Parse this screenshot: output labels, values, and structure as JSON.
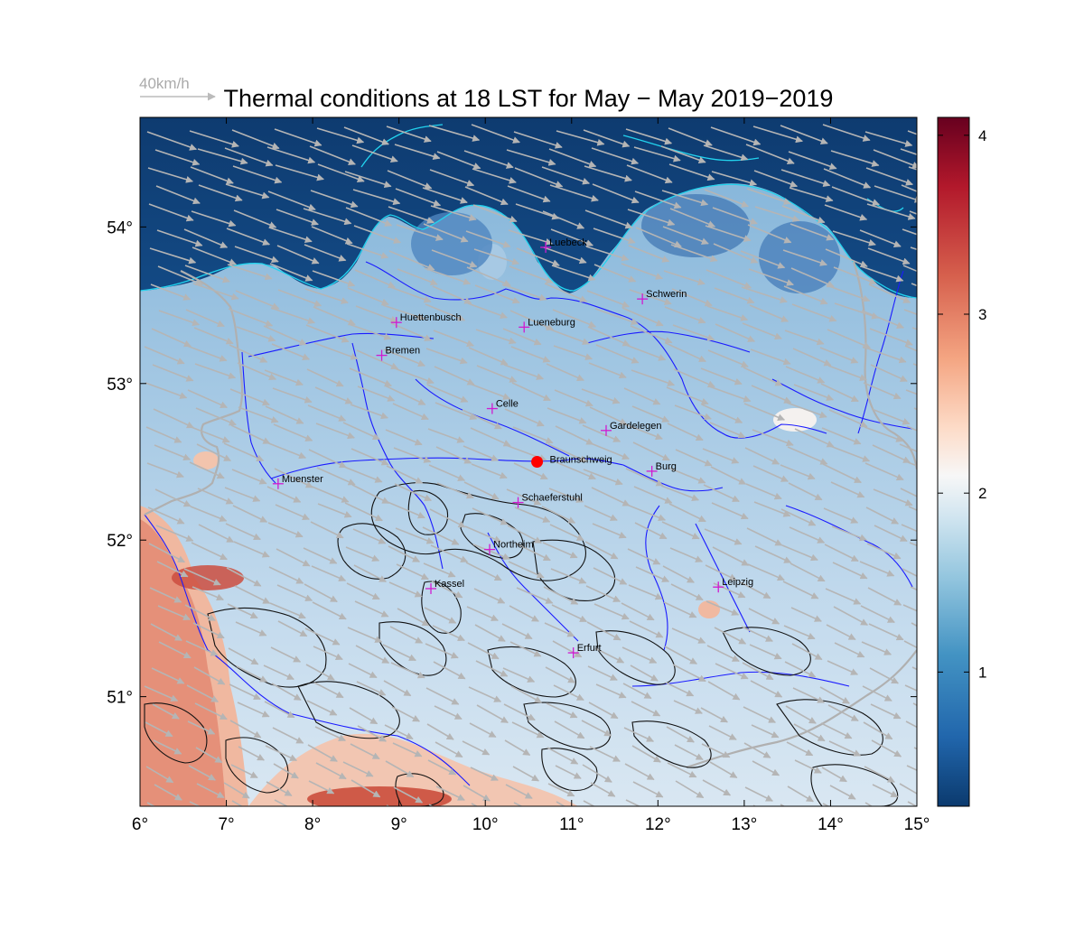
{
  "title": "Thermal conditions at 18 LST for May − May  2019−2019",
  "wind_scale": {
    "label": "40km/h"
  },
  "axes": {
    "x_ticks": [
      "6°",
      "7°",
      "8°",
      "9°",
      "10°",
      "11°",
      "12°",
      "13°",
      "14°",
      "15°"
    ],
    "x_values": [
      6,
      7,
      8,
      9,
      10,
      11,
      12,
      13,
      14,
      15
    ],
    "y_ticks": [
      "51°",
      "52°",
      "53°",
      "54°"
    ],
    "y_values": [
      51,
      52,
      53,
      54
    ],
    "lon_range": [
      6,
      15
    ],
    "lat_range": [
      50.3,
      54.7
    ]
  },
  "colorbar": {
    "ticks": [
      "1",
      "2",
      "3",
      "4"
    ],
    "values": [
      1,
      2,
      3,
      4
    ],
    "range": [
      0.25,
      4.1
    ],
    "colormap": [
      "#0b3a6e",
      "#2166ac",
      "#4393c3",
      "#92c5de",
      "#d1e5f0",
      "#f7f7f7",
      "#fddbc7",
      "#f4a582",
      "#d6604d",
      "#b2182b",
      "#67001f"
    ]
  },
  "colors": {
    "rivers": "#1a1aff",
    "coast": "#22d3ee",
    "borders": "#b0b0b0",
    "contours": "#111111",
    "city_marker": "#d01bd0",
    "highlight_point": "#ff0000",
    "wind_arrows": "#b5b5b5"
  },
  "cities": [
    {
      "name": "Luebeck",
      "lon": 10.7,
      "lat": 53.87
    },
    {
      "name": "Schwerin",
      "lon": 11.82,
      "lat": 53.54
    },
    {
      "name": "Huettenbusch",
      "lon": 8.97,
      "lat": 53.39
    },
    {
      "name": "Lueneburg",
      "lon": 10.45,
      "lat": 53.36
    },
    {
      "name": "Bremen",
      "lon": 8.8,
      "lat": 53.18
    },
    {
      "name": "Celle",
      "lon": 10.08,
      "lat": 52.84
    },
    {
      "name": "Gardelegen",
      "lon": 11.4,
      "lat": 52.7
    },
    {
      "name": "Burg",
      "lon": 11.93,
      "lat": 52.44
    },
    {
      "name": "Muenster",
      "lon": 7.6,
      "lat": 52.36
    },
    {
      "name": "Schaeferstuhl",
      "lon": 10.38,
      "lat": 52.24
    },
    {
      "name": "Northeim",
      "lon": 10.05,
      "lat": 51.94
    },
    {
      "name": "Kassel",
      "lon": 9.37,
      "lat": 51.69
    },
    {
      "name": "Leipzig",
      "lon": 12.7,
      "lat": 51.7
    },
    {
      "name": "Erfurt",
      "lon": 11.02,
      "lat": 51.28
    }
  ],
  "highlight": {
    "name": "Braunschweig",
    "lon": 10.6,
    "lat": 52.5
  }
}
